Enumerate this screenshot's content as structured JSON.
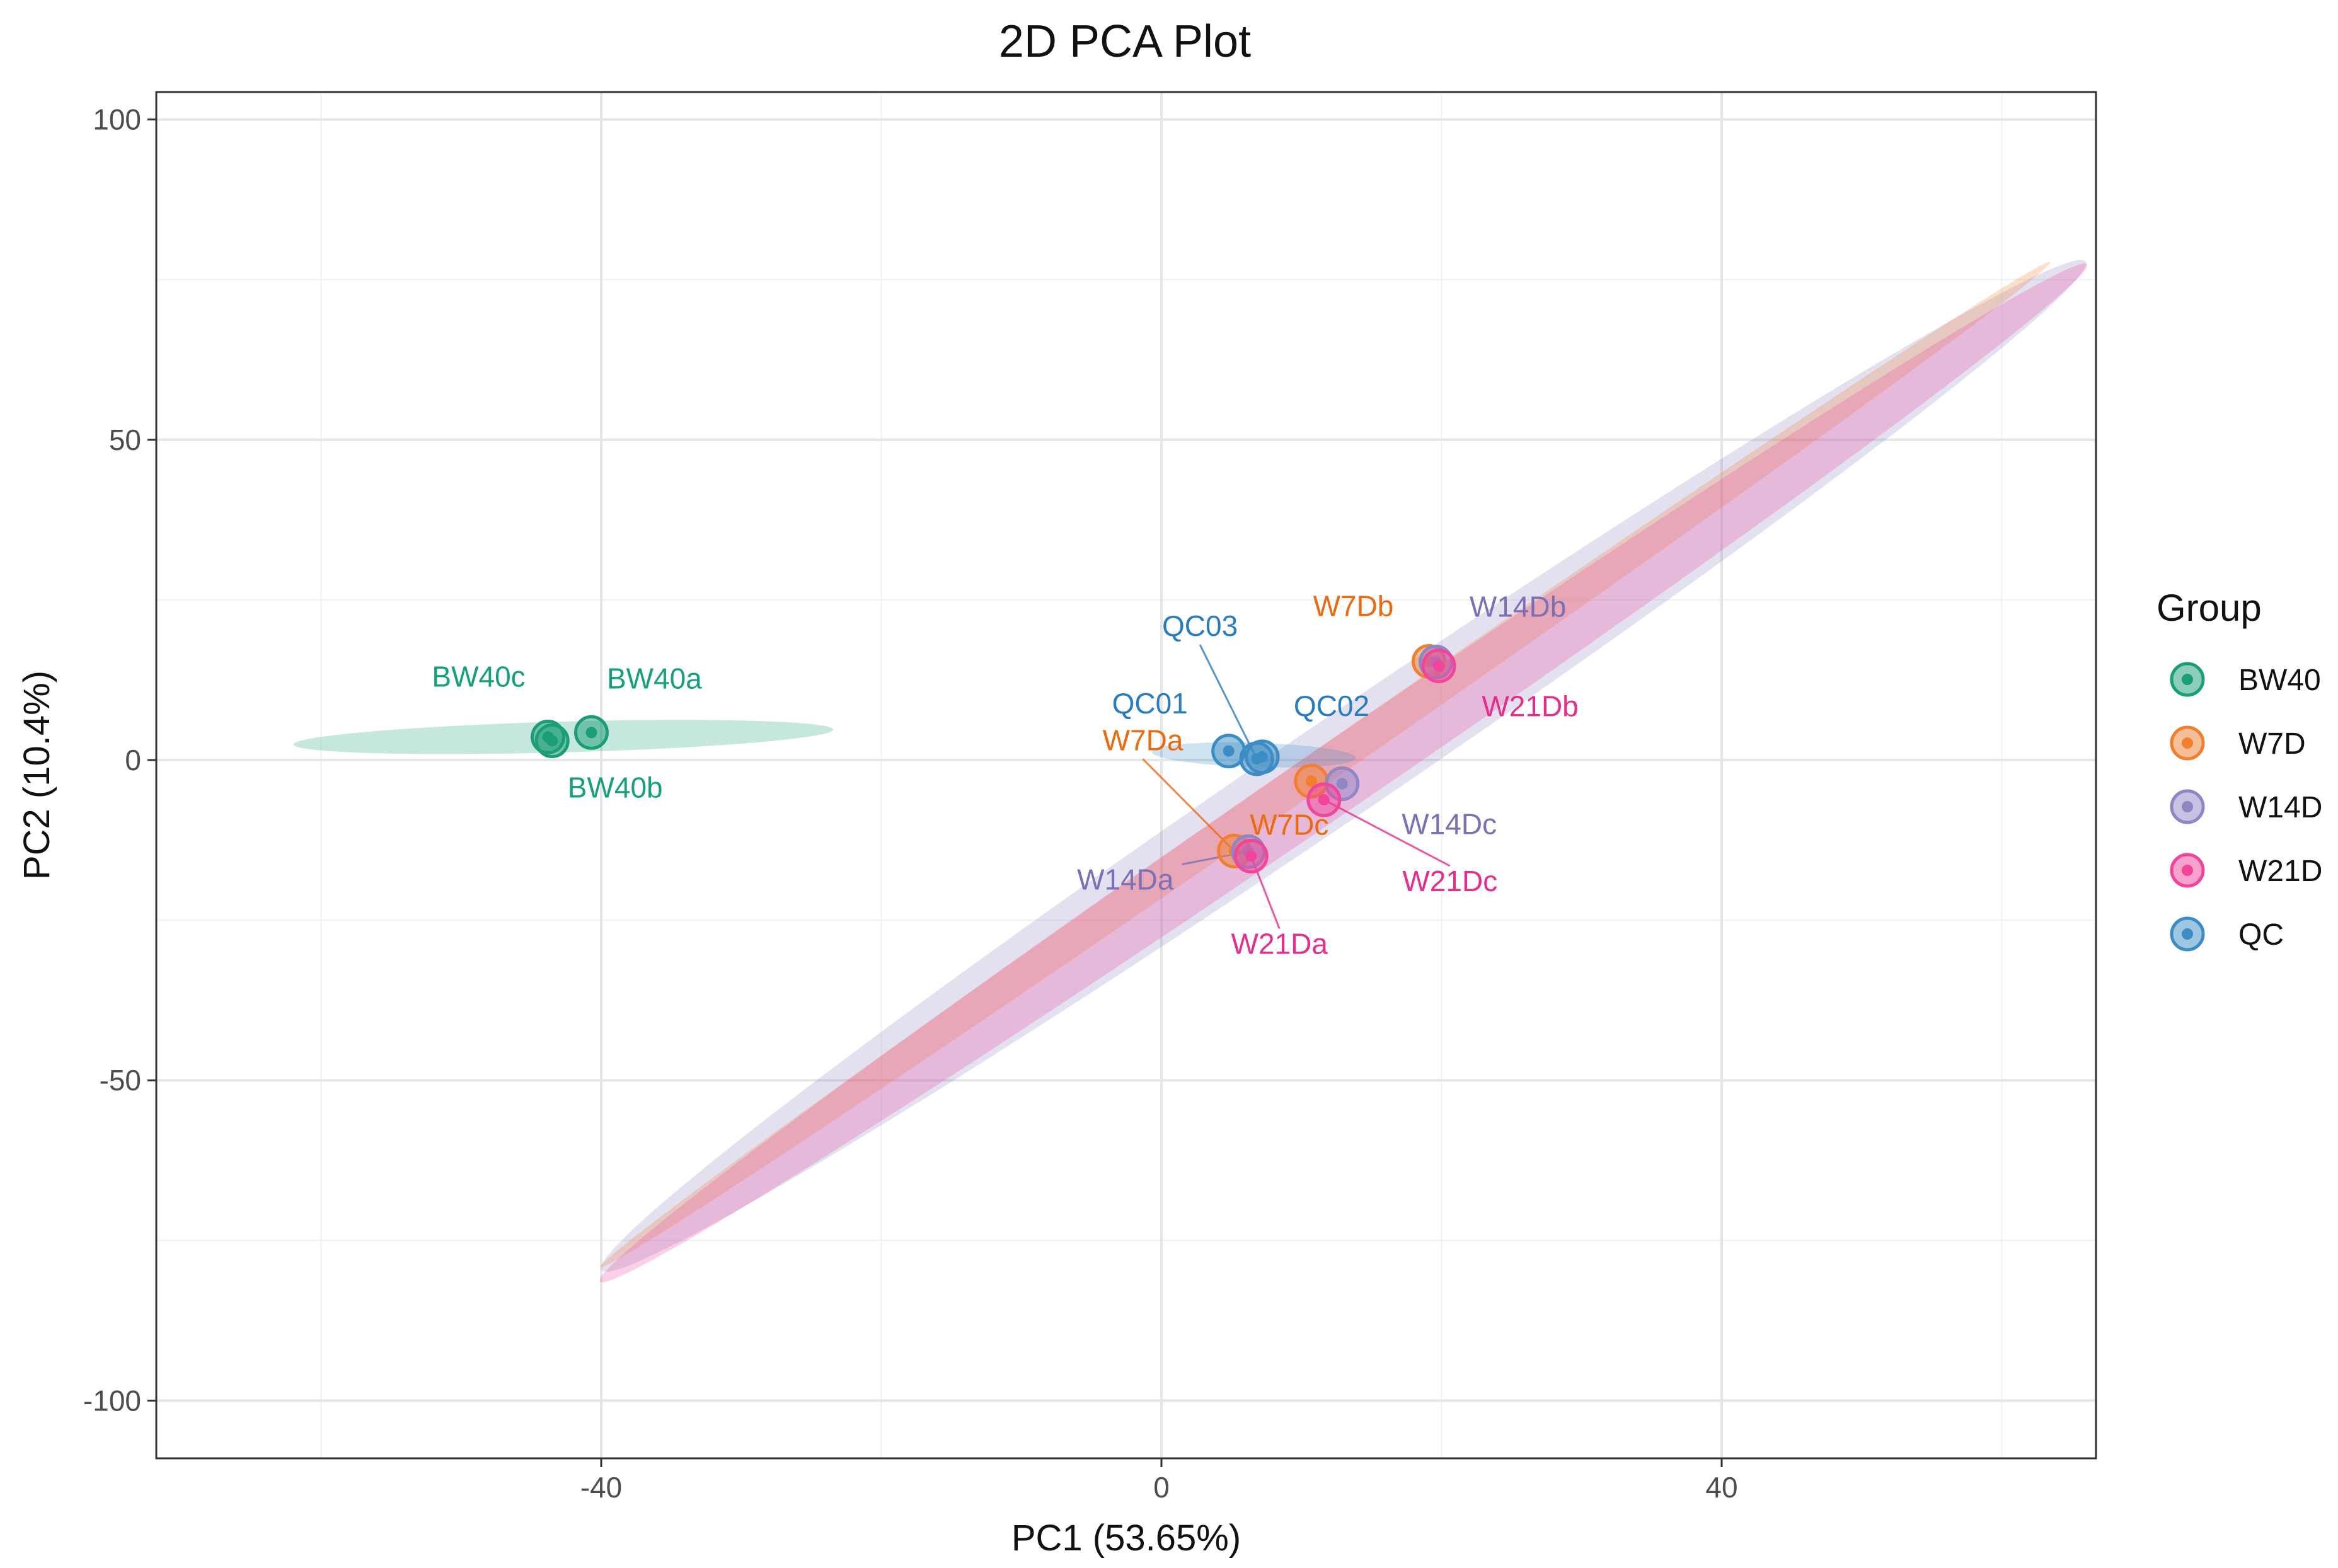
{
  "chart_data": {
    "type": "scatter",
    "title": "2D PCA Plot",
    "xlabel": "PC1 (53.65%)",
    "ylabel": "PC2 (10.4%)",
    "xlim": [
      -70,
      67
    ],
    "ylim": [
      -109,
      102
    ],
    "x_ticks": [
      -40,
      0,
      40
    ],
    "y_ticks": [
      100,
      50,
      0,
      -50,
      -100
    ],
    "grid": true,
    "legend": {
      "title": "Group",
      "position": "right"
    },
    "series": [
      {
        "name": "BW40",
        "color": "#1b9e77",
        "label_color": "#14a07a",
        "points": [
          {
            "label": "BW40a",
            "x": -40.7,
            "y": 4.3
          },
          {
            "label": "BW40b",
            "x": -43.5,
            "y": 3.0
          },
          {
            "label": "BW40c",
            "x": -43.8,
            "y": 3.6
          }
        ],
        "ellipse": {
          "cx": -42.7,
          "cy": 3.6,
          "a": 19.3,
          "b": 2.4,
          "angle": 3.5
        }
      },
      {
        "name": "W7D",
        "color": "#f08030",
        "label_color": "#ea6a10",
        "points": [
          {
            "label": "W7Da",
            "x": 5.2,
            "y": -14.2
          },
          {
            "label": "W7Db",
            "x": 19.1,
            "y": 15.4
          },
          {
            "label": "W7Dc",
            "x": 10.7,
            "y": -3.3
          }
        ],
        "ellipse": {
          "cx": 11.7,
          "cy": -0.7,
          "a": 94.0,
          "b": 1.8,
          "angle": 56.6
        }
      },
      {
        "name": "W14D",
        "color": "#8f86c4",
        "label_color": "#7b6fb5",
        "points": [
          {
            "label": "W14Da",
            "x": 6.2,
            "y": -14.3
          },
          {
            "label": "W14Db",
            "x": 19.6,
            "y": 15.3
          },
          {
            "label": "W14Dc",
            "x": 12.9,
            "y": -3.7
          }
        ],
        "ellipse": {
          "cx": 13.0,
          "cy": -0.9,
          "a": 95.0,
          "b": 5.2,
          "angle": 56.2
        }
      },
      {
        "name": "W21D",
        "color": "#f0459a",
        "label_color": "#e52e8a",
        "points": [
          {
            "label": "W21Da",
            "x": 6.4,
            "y": -15.0
          },
          {
            "label": "W21Db",
            "x": 19.8,
            "y": 14.7
          },
          {
            "label": "W21Dc",
            "x": 11.6,
            "y": -6.2
          }
        ],
        "ellipse": {
          "cx": 13.0,
          "cy": -2.0,
          "a": 95.6,
          "b": 3.6,
          "angle": 56.3
        }
      },
      {
        "name": "QC",
        "color": "#3c8dc4",
        "label_color": "#2a7dbd",
        "points": [
          {
            "label": "QC01",
            "x": 4.8,
            "y": 1.4
          },
          {
            "label": "QC02",
            "x": 7.2,
            "y": 0.5
          },
          {
            "label": "QC03",
            "x": 6.8,
            "y": 0.2
          }
        ],
        "ellipse": {
          "cx": 6.6,
          "cy": 0.8,
          "a": 7.3,
          "b": 1.9,
          "angle": -4
        }
      }
    ]
  }
}
